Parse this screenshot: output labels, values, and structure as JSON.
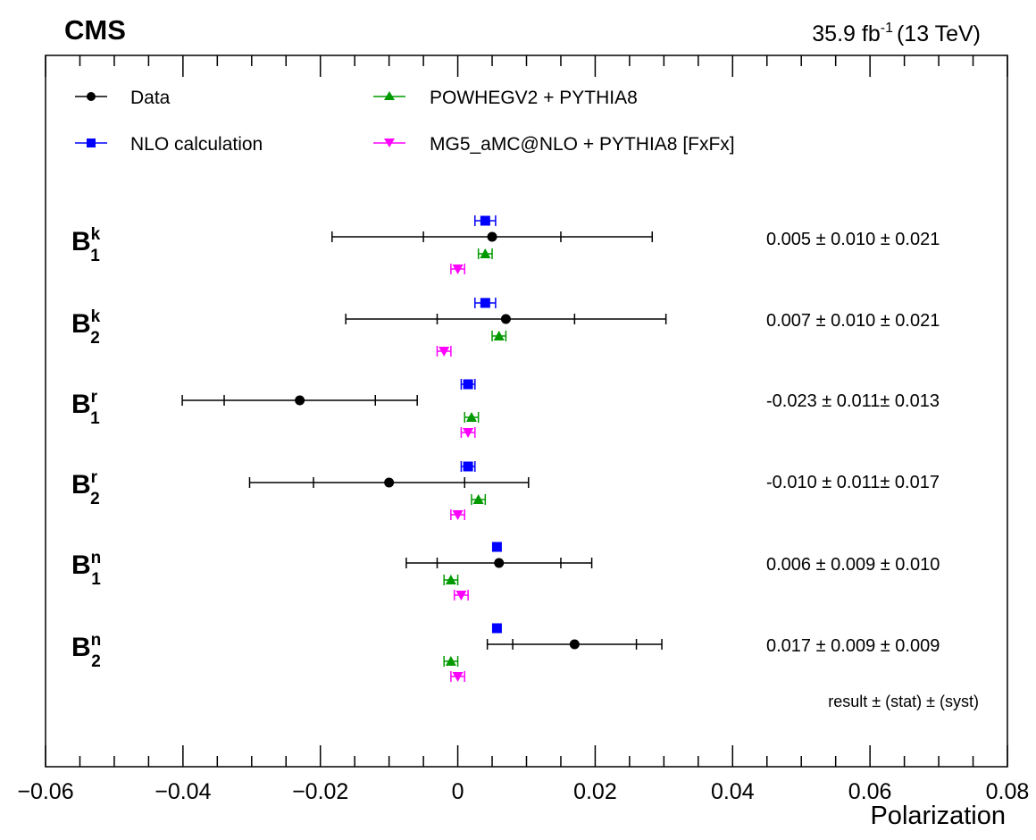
{
  "header": {
    "experiment": "CMS",
    "lumi_value": "35.9 fb",
    "lumi_exp": "-1",
    "lumi_energy": "(13 TeV)"
  },
  "chart_data": {
    "type": "scatter",
    "xlabel": "Polarization",
    "xlim": [
      -0.06,
      0.08
    ],
    "xticks": [
      -0.06,
      -0.04,
      -0.02,
      0,
      0.02,
      0.04,
      0.06,
      0.08
    ],
    "xtick_labels": [
      "−0.06",
      "−0.04",
      "−0.02",
      "0",
      "0.02",
      "0.04",
      "0.06",
      "0.08"
    ],
    "grid": false,
    "legend_position": "top-left",
    "categories": [
      {
        "base": "B",
        "sup": "k",
        "sub": "1"
      },
      {
        "base": "B",
        "sup": "k",
        "sub": "2"
      },
      {
        "base": "B",
        "sup": "r",
        "sub": "1"
      },
      {
        "base": "B",
        "sup": "r",
        "sub": "2"
      },
      {
        "base": "B",
        "sup": "n",
        "sub": "1"
      },
      {
        "base": "B",
        "sup": "n",
        "sub": "2"
      }
    ],
    "result_texts": [
      "0.005 ± 0.010 ± 0.021",
      "0.007 ± 0.010 ± 0.021",
      "-0.023 ± 0.011± 0.013",
      "-0.010 ± 0.011± 0.017",
      "0.006 ± 0.009 ± 0.010",
      "0.017 ± 0.009 ± 0.009"
    ],
    "footnote": "result ± (stat) ± (syst)",
    "series": [
      {
        "name": "Data",
        "marker": "circle",
        "color": "#000000",
        "values": [
          0.005,
          0.007,
          -0.023,
          -0.01,
          0.006,
          0.017
        ],
        "stat_err": [
          0.01,
          0.01,
          0.011,
          0.011,
          0.009,
          0.009
        ],
        "total_err": [
          0.0233,
          0.0233,
          0.0171,
          0.0203,
          0.0135,
          0.0127
        ]
      },
      {
        "name": "NLO calculation",
        "marker": "square",
        "color": "#0000ff",
        "values": [
          0.004,
          0.004,
          0.0015,
          0.0015,
          0.0057,
          0.0057
        ],
        "err": [
          0.0015,
          0.0015,
          0.001,
          0.001,
          0,
          0
        ]
      },
      {
        "name": "POWHEGV2 + PYTHIA8",
        "marker": "triangle-up",
        "color": "#009900",
        "values": [
          0.004,
          0.006,
          0.002,
          0.003,
          -0.001,
          -0.001
        ],
        "err": [
          0.001,
          0.001,
          0.001,
          0.001,
          0.001,
          0.001
        ]
      },
      {
        "name": "MG5_aMC@NLO + PYTHIA8 [FxFx]",
        "marker": "triangle-down",
        "color": "#ff00ff",
        "values": [
          0.0,
          -0.002,
          0.0015,
          0.0,
          0.0005,
          0.0
        ],
        "err": [
          0.001,
          0.001,
          0.001,
          0.001,
          0.001,
          0.001
        ]
      }
    ]
  }
}
